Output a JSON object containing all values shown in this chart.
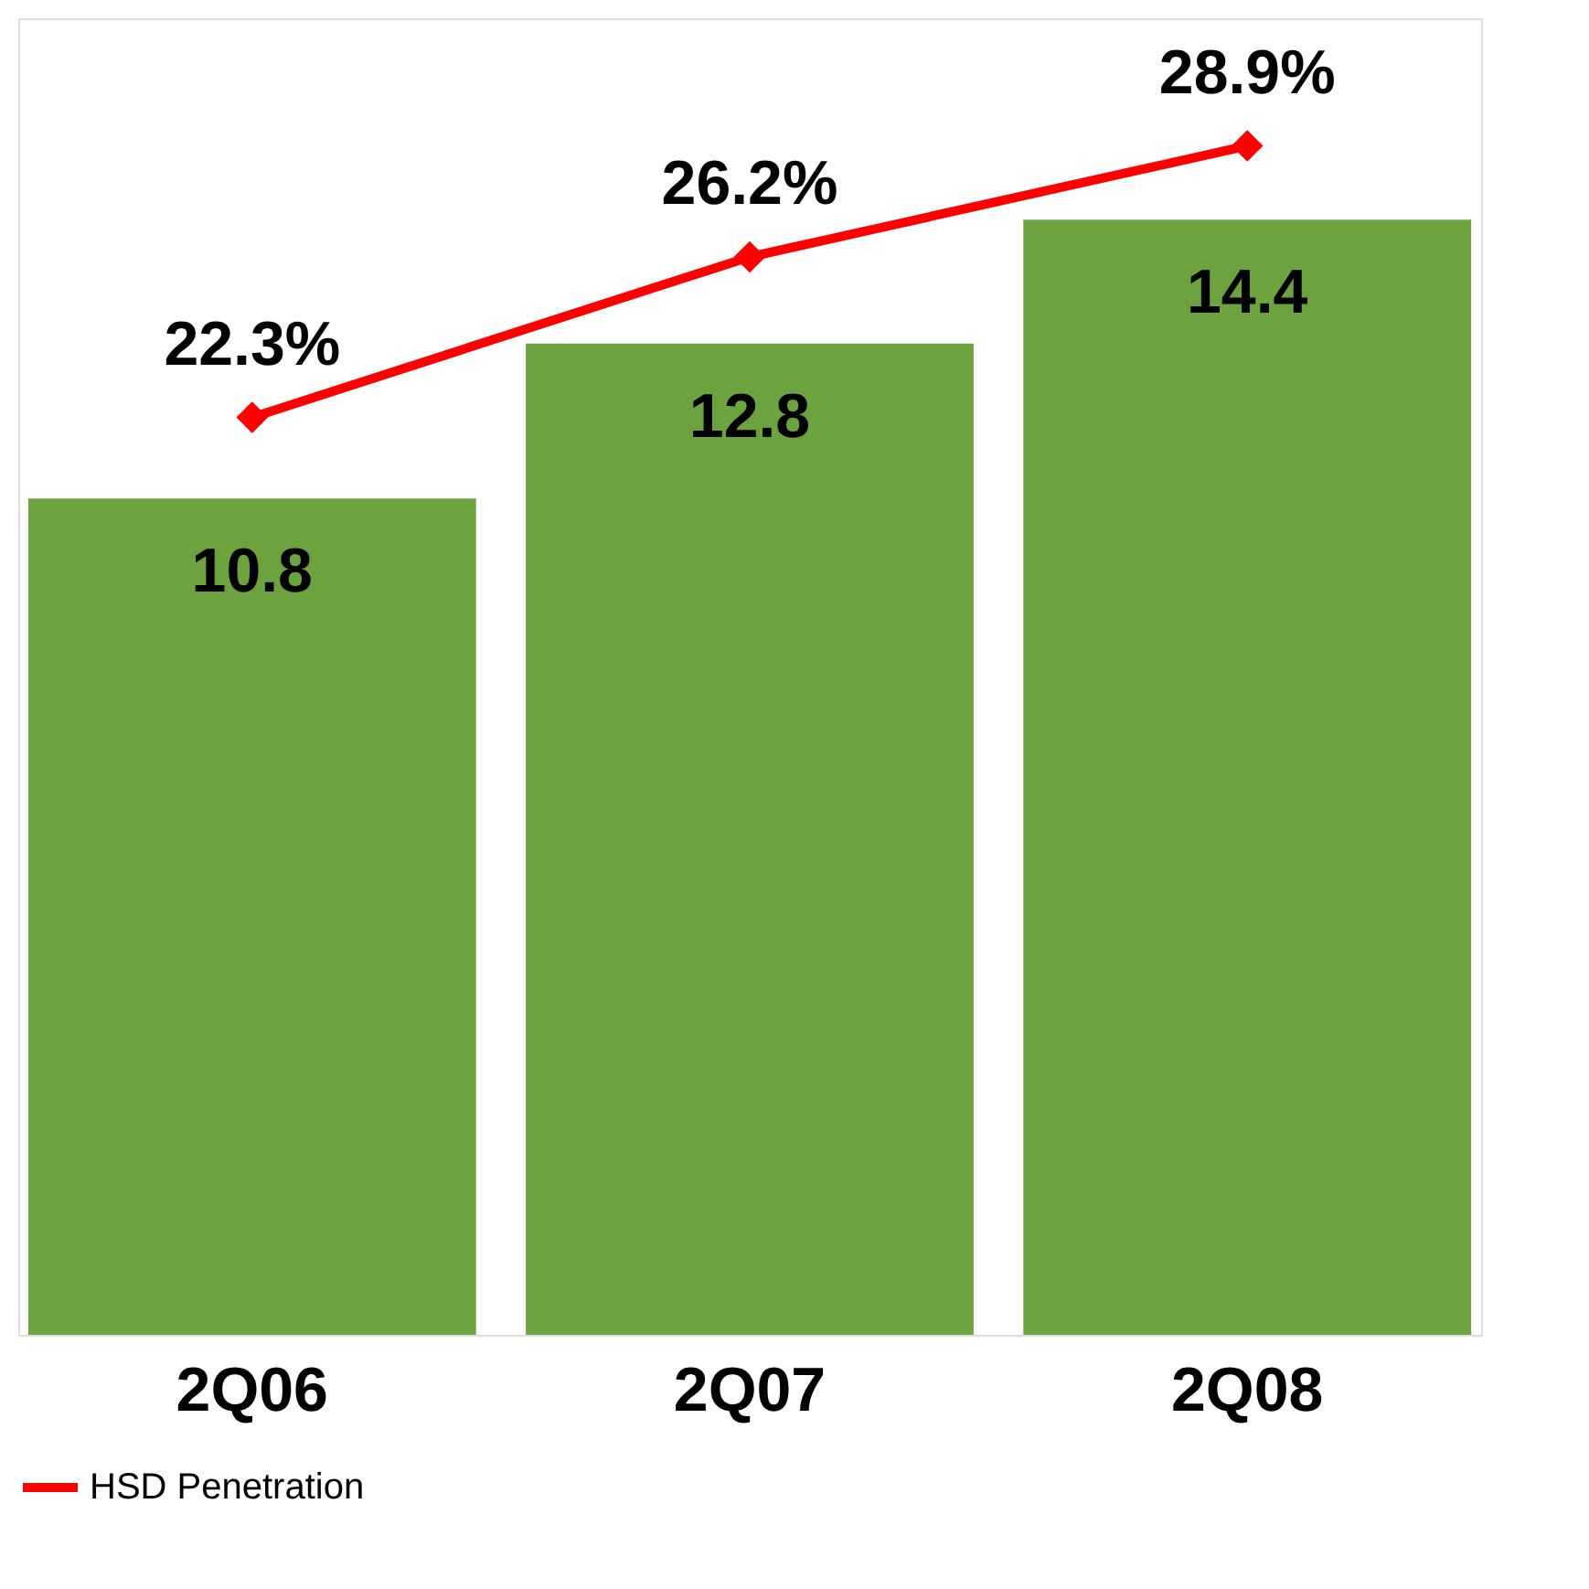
{
  "chart_data": {
    "type": "bar",
    "categories": [
      "2Q06",
      "2Q07",
      "2Q08"
    ],
    "series": [
      {
        "color": "#6ca33f",
        "values": [
          10.8,
          12.8,
          14.4
        ]
      },
      {
        "type": "line",
        "name": "HSD Penetration",
        "axis": "y2",
        "color": "#ff0000",
        "marker": "diamond",
        "values": [
          22.3,
          26.2,
          28.9
        ],
        "value_labels": [
          "22.3%",
          "26.2%",
          "28.9%"
        ]
      }
    ],
    "ylim": [
      0,
      17
    ],
    "y2lim": [
      0,
      32
    ],
    "data_labels": true,
    "legend": "bottom",
    "tick_labels": "x",
    "grid": false
  }
}
